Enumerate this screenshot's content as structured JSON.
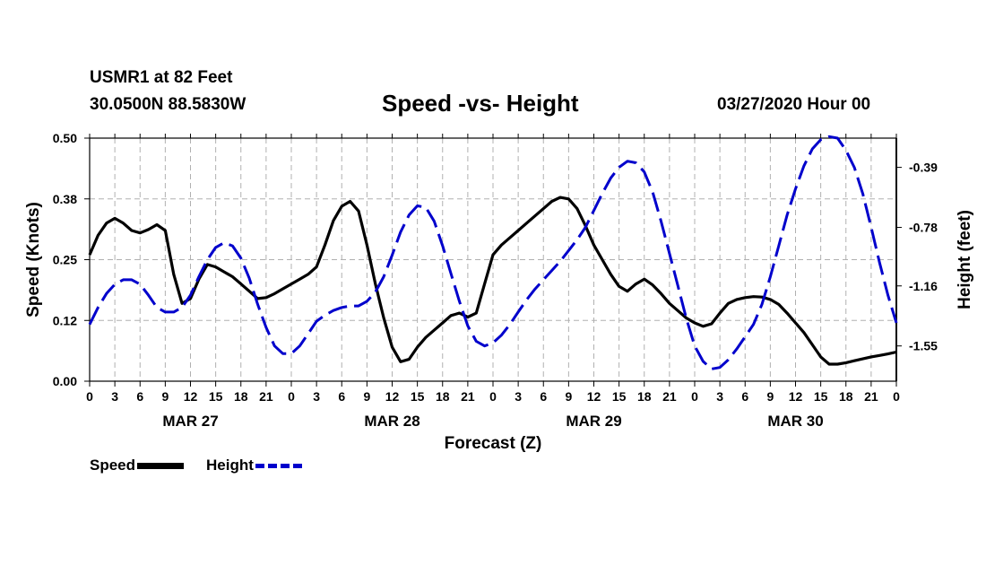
{
  "header": {
    "station": "USMR1 at 82 Feet",
    "coords": "30.0500N 88.5830W",
    "title": "Speed -vs- Height",
    "datetime": "03/27/2020 Hour 00"
  },
  "legend": {
    "speed_label": "Speed",
    "height_label": "Height"
  },
  "colors": {
    "speed": "#000000",
    "height": "#0000cc",
    "grid": "#b0b0b0"
  },
  "chart_data": {
    "type": "line",
    "title": "Speed -vs- Height",
    "xlabel": "Forecast (Z)",
    "ylabel": "Speed (Knots)",
    "y2label": "Height (feet)",
    "ylim": [
      0.0,
      0.5
    ],
    "y2lim": [
      -1.779,
      -0.2
    ],
    "yticks": [
      "0.00",
      "0.12",
      "0.25",
      "0.38",
      "0.50"
    ],
    "yticks_values": [
      0.0,
      0.125,
      0.25,
      0.375,
      0.5
    ],
    "y2ticks": [
      "-1.55",
      "-1.16",
      "-0.78",
      "-0.39"
    ],
    "y2ticks_values": [
      -1.55,
      -1.16,
      -0.78,
      -0.39
    ],
    "xlim": [
      0,
      96
    ],
    "x_tick_hours": [
      0,
      3,
      6,
      9,
      12,
      15,
      18,
      21,
      24,
      27,
      30,
      33,
      36,
      39,
      42,
      45,
      48,
      51,
      54,
      57,
      60,
      63,
      66,
      69,
      72,
      75,
      78,
      81,
      84,
      87,
      90,
      93,
      96
    ],
    "x_tick_labels": [
      "0",
      "3",
      "6",
      "9",
      "12",
      "15",
      "18",
      "21",
      "0",
      "3",
      "6",
      "9",
      "12",
      "15",
      "18",
      "21",
      "0",
      "3",
      "6",
      "9",
      "12",
      "15",
      "18",
      "21",
      "0",
      "3",
      "6",
      "9",
      "12",
      "15",
      "18",
      "21",
      "0"
    ],
    "date_labels": [
      {
        "label": "MAR 27",
        "hour": 12
      },
      {
        "label": "MAR 28",
        "hour": 36
      },
      {
        "label": "MAR 29",
        "hour": 60
      },
      {
        "label": "MAR 30",
        "hour": 84
      }
    ],
    "grid": true,
    "legend_position": "bottom-left",
    "series": [
      {
        "name": "Speed",
        "axis": "left",
        "style": "solid",
        "x": [
          0,
          1,
          2,
          3,
          4,
          5,
          6,
          7,
          8,
          9,
          10,
          11,
          12,
          13,
          14,
          15,
          16,
          17,
          18,
          19,
          20,
          21,
          22,
          23,
          24,
          25,
          26,
          27,
          28,
          29,
          30,
          31,
          32,
          33,
          34,
          35,
          36,
          37,
          38,
          39,
          40,
          41,
          42,
          43,
          44,
          45,
          46,
          47,
          48,
          49,
          50,
          51,
          52,
          53,
          54,
          55,
          56,
          57,
          58,
          59,
          60,
          61,
          62,
          63,
          64,
          65,
          66,
          67,
          68,
          69,
          70,
          71,
          72,
          73,
          74,
          75,
          76,
          77,
          78,
          79,
          80,
          81,
          82,
          83,
          84,
          85,
          86,
          87,
          88,
          89,
          90,
          91,
          92,
          93,
          94,
          95,
          96
        ],
        "values": [
          0.26,
          0.3,
          0.325,
          0.335,
          0.325,
          0.31,
          0.305,
          0.312,
          0.322,
          0.31,
          0.22,
          0.16,
          0.17,
          0.21,
          0.24,
          0.235,
          0.225,
          0.215,
          0.2,
          0.185,
          0.17,
          0.172,
          0.18,
          0.19,
          0.2,
          0.21,
          0.22,
          0.235,
          0.28,
          0.33,
          0.36,
          0.37,
          0.35,
          0.28,
          0.2,
          0.13,
          0.07,
          0.04,
          0.045,
          0.07,
          0.09,
          0.105,
          0.12,
          0.135,
          0.14,
          0.132,
          0.14,
          0.2,
          0.26,
          0.28,
          0.295,
          0.31,
          0.325,
          0.34,
          0.355,
          0.37,
          0.378,
          0.375,
          0.355,
          0.32,
          0.28,
          0.25,
          0.22,
          0.195,
          0.185,
          0.2,
          0.21,
          0.198,
          0.18,
          0.16,
          0.145,
          0.13,
          0.12,
          0.113,
          0.118,
          0.14,
          0.16,
          0.168,
          0.172,
          0.174,
          0.173,
          0.168,
          0.158,
          0.14,
          0.12,
          0.1,
          0.075,
          0.05,
          0.035,
          0.035,
          0.038,
          0.042,
          0.046,
          0.05,
          0.053,
          0.056,
          0.06
        ]
      },
      {
        "name": "Height",
        "axis": "right",
        "style": "dashed",
        "x": [
          0,
          1,
          2,
          3,
          4,
          5,
          6,
          7,
          8,
          9,
          10,
          11,
          12,
          13,
          14,
          15,
          16,
          17,
          18,
          19,
          20,
          21,
          22,
          23,
          24,
          25,
          26,
          27,
          28,
          29,
          30,
          31,
          32,
          33,
          34,
          35,
          36,
          37,
          38,
          39,
          40,
          41,
          42,
          43,
          44,
          45,
          46,
          47,
          48,
          49,
          50,
          51,
          52,
          53,
          54,
          55,
          56,
          57,
          58,
          59,
          60,
          61,
          62,
          63,
          64,
          65,
          66,
          67,
          68,
          69,
          70,
          71,
          72,
          73,
          74,
          75,
          76,
          77,
          78,
          79,
          80,
          81,
          82,
          83,
          84,
          85,
          86,
          87,
          88,
          89,
          90,
          91,
          92,
          93,
          94,
          95,
          96
        ],
        "values": [
          -1.41,
          -1.3,
          -1.21,
          -1.15,
          -1.12,
          -1.12,
          -1.15,
          -1.22,
          -1.3,
          -1.33,
          -1.33,
          -1.3,
          -1.22,
          -1.1,
          -0.99,
          -0.91,
          -0.88,
          -0.9,
          -0.98,
          -1.11,
          -1.28,
          -1.43,
          -1.55,
          -1.6,
          -1.6,
          -1.55,
          -1.47,
          -1.39,
          -1.35,
          -1.32,
          -1.3,
          -1.29,
          -1.29,
          -1.26,
          -1.2,
          -1.1,
          -0.96,
          -0.81,
          -0.7,
          -0.64,
          -0.65,
          -0.74,
          -0.9,
          -1.08,
          -1.26,
          -1.42,
          -1.52,
          -1.55,
          -1.53,
          -1.48,
          -1.41,
          -1.33,
          -1.25,
          -1.18,
          -1.12,
          -1.06,
          -1.0,
          -0.93,
          -0.86,
          -0.78,
          -0.67,
          -0.56,
          -0.46,
          -0.39,
          -0.35,
          -0.36,
          -0.42,
          -0.55,
          -0.74,
          -0.95,
          -1.16,
          -1.37,
          -1.55,
          -1.65,
          -1.7,
          -1.69,
          -1.64,
          -1.57,
          -1.49,
          -1.41,
          -1.28,
          -1.1,
          -0.9,
          -0.7,
          -0.53,
          -0.38,
          -0.27,
          -0.21,
          -0.19,
          -0.2,
          -0.28,
          -0.39,
          -0.56,
          -0.78,
          -1.01,
          -1.22,
          -1.4
        ]
      }
    ]
  }
}
